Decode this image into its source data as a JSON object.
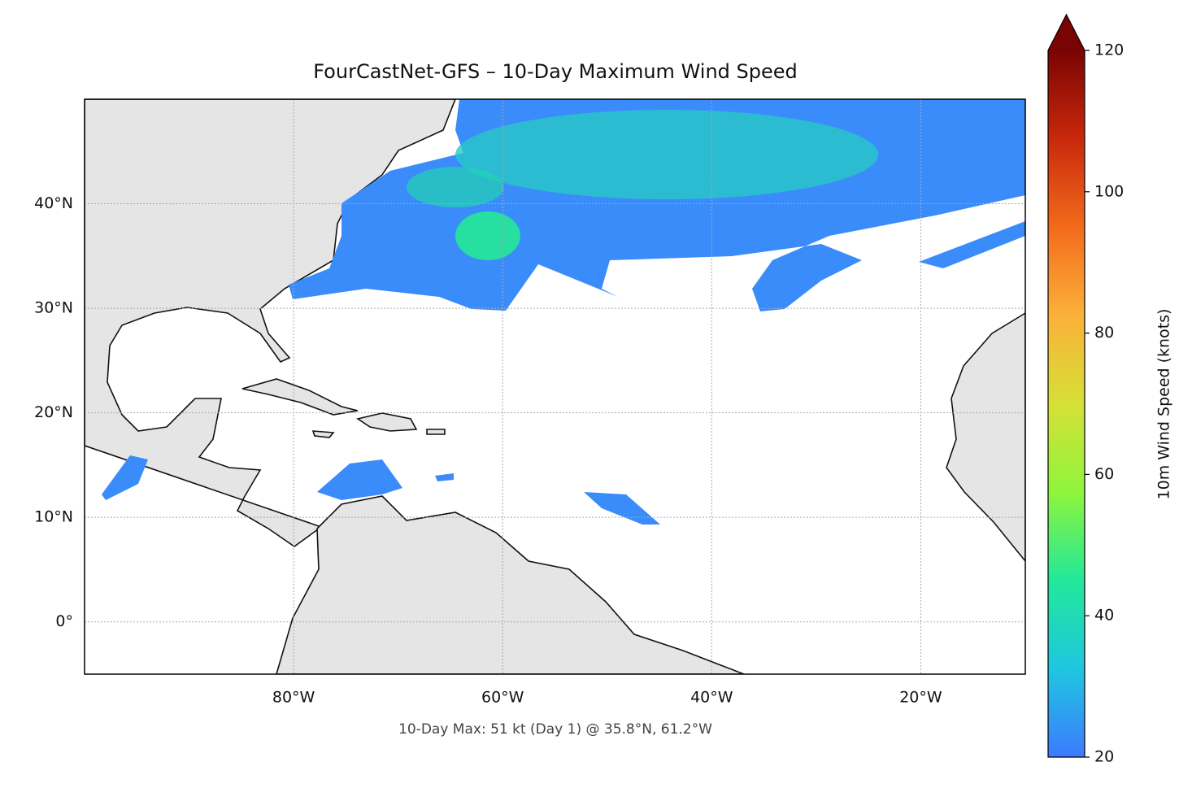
{
  "chart_data": {
    "type": "map",
    "title": "FourCastNet-GFS – 10-Day Maximum Wind Speed",
    "annotation": "10-Day Max: 51 kt (Day 1) @ 35.8°N, 61.2°W",
    "xlim": [
      -100,
      -10
    ],
    "ylim": [
      -5,
      50
    ],
    "xticks": [
      {
        "value": -80,
        "label": "80°W"
      },
      {
        "value": -60,
        "label": "60°W"
      },
      {
        "value": -40,
        "label": "40°W"
      },
      {
        "value": -20,
        "label": "20°W"
      }
    ],
    "yticks": [
      {
        "value": 0,
        "label": "0°"
      },
      {
        "value": 10,
        "label": "10°N"
      },
      {
        "value": 20,
        "label": "20°N"
      },
      {
        "value": 30,
        "label": "30°N"
      },
      {
        "value": 40,
        "label": "40°N"
      }
    ],
    "grid": true,
    "colorbar": {
      "label": "10m Wind Speed (knots)",
      "lim": [
        20,
        120
      ],
      "ticks": [
        20,
        40,
        60,
        80,
        100,
        120
      ],
      "extend": "max",
      "colors": [
        "#3d7bff",
        "#1fc6e0",
        "#22e89a",
        "#8ff53c",
        "#d6e036",
        "#fbb13a",
        "#f26b1c",
        "#c9280b",
        "#7a0403"
      ]
    }
  }
}
